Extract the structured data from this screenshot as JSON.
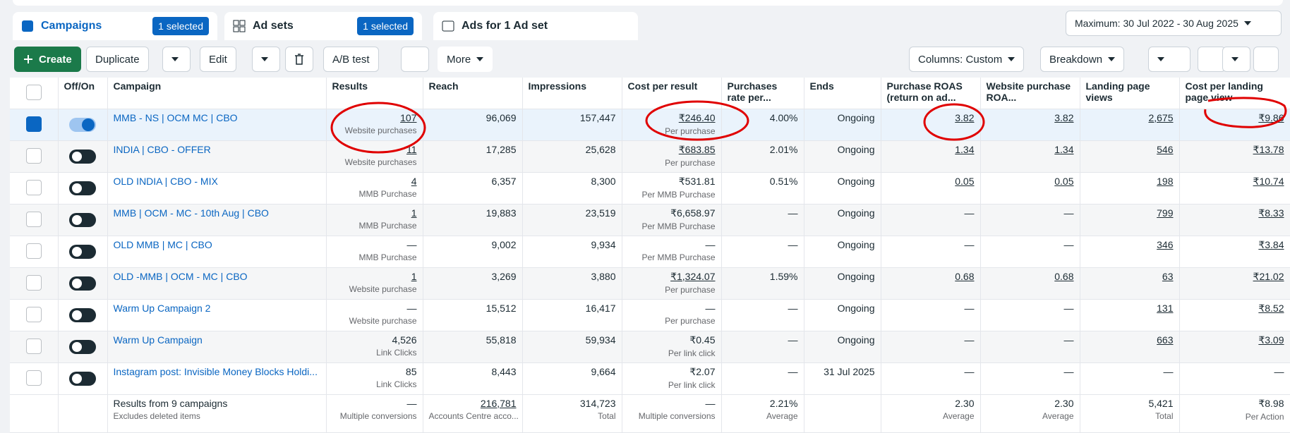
{
  "tabs": [
    {
      "label": "Campaigns",
      "badge": "1 selected"
    },
    {
      "label": "Ad sets",
      "badge": "1 selected"
    },
    {
      "label": "Ads for 1 Ad set"
    }
  ],
  "date_range": "Maximum: 30 Jul 2022 - 30 Aug 2025",
  "toolbar": {
    "create": "Create",
    "duplicate": "Duplicate",
    "edit": "Edit",
    "ab_test": "A/B test",
    "more": "More",
    "columns": "Columns: Custom",
    "breakdown": "Breakdown"
  },
  "table": {
    "headers": [
      "Off/On",
      "Campaign",
      "Results",
      "Reach",
      "Impressions",
      "Cost per result",
      "Purchases rate per...",
      "Ends",
      "Purchase ROAS (return on ad...",
      "Website purchase ROA...",
      "Landing page views",
      "Cost per landing page view"
    ],
    "rows": [
      {
        "selected": true,
        "on": true,
        "cells": [
          "MMB - NS | OCM MC | CBO",
          "107",
          "Website purchases",
          "96,069",
          "157,447",
          "₹246.40",
          "Per purchase",
          "4.00%",
          "Ongoing",
          "3.82",
          "3.82",
          "2,675",
          "₹9.86"
        ]
      },
      {
        "selected": false,
        "on": false,
        "cells": [
          "INDIA | CBO - OFFER",
          "11",
          "Website purchases",
          "17,285",
          "25,628",
          "₹683.85",
          "Per purchase",
          "2.01%",
          "Ongoing",
          "1.34",
          "1.34",
          "546",
          "₹13.78"
        ]
      },
      {
        "selected": false,
        "on": false,
        "cells": [
          "OLD INDIA | CBO - MIX",
          "4",
          "MMB Purchase",
          "6,357",
          "8,300",
          "₹531.81",
          "Per MMB Purchase",
          "0.51%",
          "Ongoing",
          "0.05",
          "0.05",
          "198",
          "₹10.74"
        ]
      },
      {
        "selected": false,
        "on": false,
        "cells": [
          "MMB | OCM - MC - 10th Aug | CBO",
          "1",
          "MMB Purchase",
          "19,883",
          "23,519",
          "₹6,658.97",
          "Per MMB Purchase",
          "—",
          "Ongoing",
          "—",
          "—",
          "799",
          "₹8.33"
        ]
      },
      {
        "selected": false,
        "on": false,
        "cells": [
          "OLD MMB | MC | CBO",
          "—",
          "MMB Purchase",
          "9,002",
          "9,934",
          "—",
          "Per MMB Purchase",
          "—",
          "Ongoing",
          "—",
          "—",
          "346",
          "₹3.84"
        ]
      },
      {
        "selected": false,
        "on": false,
        "cells": [
          "OLD -MMB | OCM - MC | CBO",
          "1",
          "Website purchase",
          "3,269",
          "3,880",
          "₹1,324.07",
          "Per purchase",
          "1.59%",
          "Ongoing",
          "0.68",
          "0.68",
          "63",
          "₹21.02"
        ]
      },
      {
        "selected": false,
        "on": false,
        "cells": [
          "Warm Up Campaign 2",
          "—",
          "Website purchase",
          "15,512",
          "16,417",
          "—",
          "Per purchase",
          "—",
          "Ongoing",
          "—",
          "—",
          "131",
          "₹8.52"
        ]
      },
      {
        "selected": false,
        "on": false,
        "cells": [
          "Warm Up Campaign",
          "4,526",
          "Link Clicks",
          "55,818",
          "59,934",
          "₹0.45",
          "Per link click",
          "—",
          "Ongoing",
          "—",
          "—",
          "663",
          "₹3.09"
        ]
      },
      {
        "selected": false,
        "on": false,
        "cells": [
          "Instagram post: Invisible Money Blocks Holdi...",
          "85",
          "Link Clicks",
          "8,443",
          "9,664",
          "₹2.07",
          "Per link click",
          "—",
          "31 Jul 2025",
          "—",
          "—",
          "—",
          "—"
        ]
      }
    ],
    "summary": {
      "title": "Results from 9 campaigns",
      "subtitle": "Excludes deleted items",
      "cells": [
        [
          "—",
          "Multiple conversions"
        ],
        [
          "216,781",
          "Accounts Centre acco..."
        ],
        [
          "314,723",
          "Total"
        ],
        [
          "—",
          "Multiple conversions"
        ],
        [
          "2.21%",
          "Average"
        ],
        [
          "",
          ""
        ],
        [
          "2.30",
          "Average"
        ],
        [
          "2.30",
          "Average"
        ],
        [
          "5,421",
          "Total"
        ],
        [
          "₹8.98",
          "Per Action"
        ]
      ]
    }
  }
}
